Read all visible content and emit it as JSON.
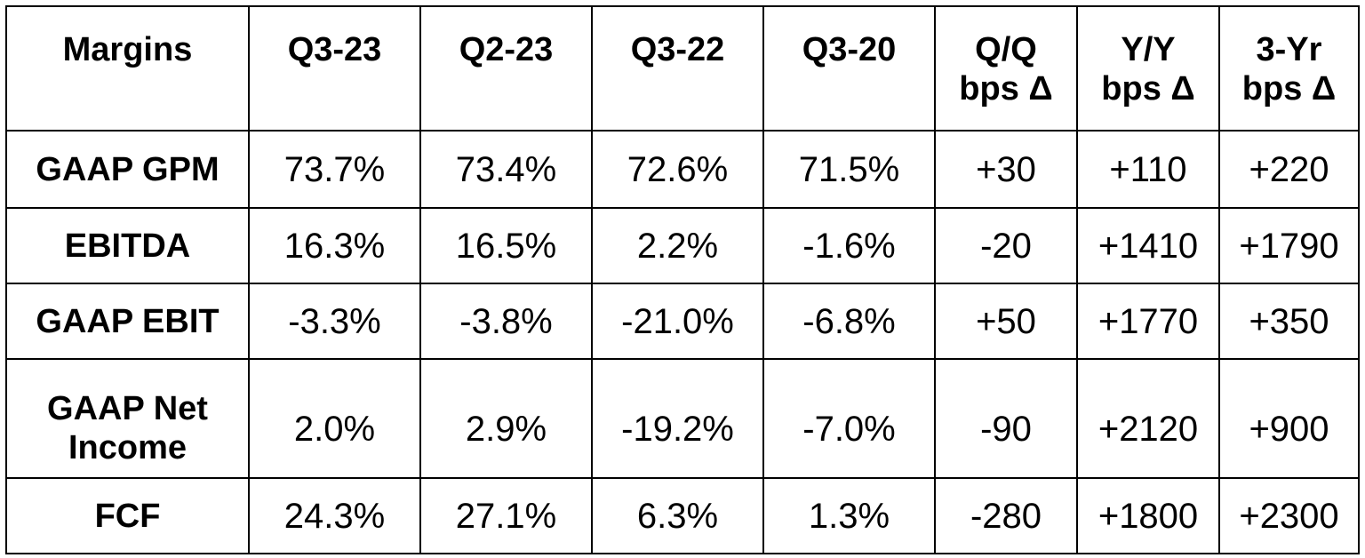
{
  "table": {
    "corner_label": "Margins",
    "columns": [
      {
        "line1": "Q3-23",
        "line2": ""
      },
      {
        "line1": "Q2-23",
        "line2": ""
      },
      {
        "line1": "Q3-22",
        "line2": ""
      },
      {
        "line1": "Q3-20",
        "line2": ""
      },
      {
        "line1": "Q/Q",
        "line2": "bps Δ"
      },
      {
        "line1": "Y/Y",
        "line2": "bps Δ"
      },
      {
        "line1": "3-Yr",
        "line2": "bps Δ"
      }
    ],
    "rows": [
      {
        "label_line1": "GAAP GPM",
        "label_line2": "",
        "cells": [
          "73.7%",
          "73.4%",
          "72.6%",
          "71.5%",
          "+30",
          "+110",
          "+220"
        ]
      },
      {
        "label_line1": "EBITDA",
        "label_line2": "",
        "cells": [
          "16.3%",
          "16.5%",
          "2.2%",
          "-1.6%",
          "-20",
          "+1410",
          "+1790"
        ]
      },
      {
        "label_line1": "GAAP EBIT",
        "label_line2": "",
        "cells": [
          "-3.3%",
          "-3.8%",
          "-21.0%",
          "-6.8%",
          "+50",
          "+1770",
          "+350"
        ]
      },
      {
        "label_line1": "GAAP Net",
        "label_line2": "Income",
        "cells": [
          "2.0%",
          "2.9%",
          "-19.2%",
          "-7.0%",
          "-90",
          "+2120",
          "+900"
        ]
      },
      {
        "label_line1": "FCF",
        "label_line2": "",
        "cells": [
          "24.3%",
          "27.1%",
          "6.3%",
          "1.3%",
          "-280",
          "+1800",
          "+2300"
        ]
      }
    ]
  }
}
